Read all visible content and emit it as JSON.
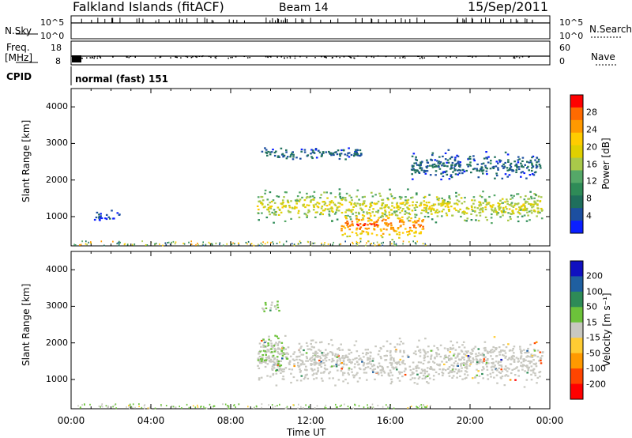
{
  "header": {
    "station": "Falkland Islands (fitACF)",
    "beam": "Beam 14",
    "date": "15/Sep/2011"
  },
  "noise_panel": {
    "label": "N.Sky",
    "right_label": "N.Search",
    "left_ticks": [
      "10^5",
      "10^0"
    ],
    "right_ticks": [
      "10^5",
      "10^0"
    ]
  },
  "freq_panel": {
    "label_line1": "Freq.",
    "label_line2": "[MHz]",
    "right_label": "Nave",
    "left_ticks": [
      "18",
      "8"
    ],
    "right_ticks": [
      "60",
      "0"
    ]
  },
  "cpid_panel": {
    "label": "CPID",
    "text": "normal (fast) 151"
  },
  "power_colorbar": {
    "label": "Power [dB]",
    "ticks": [
      "28",
      "24",
      "20",
      "16",
      "12",
      "8",
      "4"
    ],
    "colors": [
      "#ff0000",
      "#ff6a00",
      "#ff9900",
      "#ffcc00",
      "#e0d000",
      "#a9c94a",
      "#55a868",
      "#2e8b57",
      "#1f6f5c",
      "#1c4fa0",
      "#0a1fff"
    ]
  },
  "velocity_colorbar": {
    "label": "Velocity [m s⁻¹]",
    "ticks": [
      "200",
      "100",
      "50",
      "15",
      "-15",
      "-50",
      "-100",
      "-200"
    ],
    "colors": [
      "#1010c0",
      "#1f5fa0",
      "#2e8b57",
      "#6cc23a",
      "#c8c8c0",
      "#ffcc33",
      "#ff9900",
      "#ff4500",
      "#ff0000"
    ]
  },
  "chart_data": [
    {
      "type": "heatmap",
      "title": "Power",
      "xlabel": "Time UT",
      "ylabel": "Slant Range [km]",
      "x_ticks": [
        "00:00",
        "04:00",
        "08:00",
        "12:00",
        "16:00",
        "20:00",
        "00:00"
      ],
      "y_ticks": [
        1000,
        2000,
        3000,
        4000
      ],
      "xlim": [
        0,
        24
      ],
      "ylim": [
        200,
        4500
      ],
      "colorbar_label": "Power [dB]",
      "colorbar_range": [
        0,
        30
      ],
      "regions": [
        {
          "hour_start": 9.3,
          "hour_end": 23.6,
          "range_center_km": 1300,
          "range_width_km": 900,
          "power_db": 18
        },
        {
          "hour_start": 13.5,
          "hour_end": 17.7,
          "range_center_km": 800,
          "range_width_km": 800,
          "power_db": 26
        },
        {
          "hour_start": 9.5,
          "hour_end": 14.5,
          "range_center_km": 2750,
          "range_width_km": 400,
          "power_db": 6
        },
        {
          "hour_start": 17.0,
          "hour_end": 23.5,
          "range_center_km": 2400,
          "range_width_km": 800,
          "power_db": 6
        },
        {
          "hour_start": 1.0,
          "hour_end": 2.5,
          "range_center_km": 1050,
          "range_width_km": 300,
          "power_db": 5
        }
      ]
    },
    {
      "type": "heatmap",
      "title": "Velocity",
      "xlabel": "Time UT",
      "ylabel": "Slant Range [km]",
      "x_ticks": [
        "00:00",
        "04:00",
        "08:00",
        "12:00",
        "16:00",
        "20:00",
        "00:00"
      ],
      "y_ticks": [
        1000,
        2000,
        3000,
        4000
      ],
      "xlim": [
        0,
        24
      ],
      "ylim": [
        200,
        4500
      ],
      "colorbar_label": "Velocity [m s⁻¹]",
      "colorbar_range": [
        -250,
        250
      ],
      "regions": [
        {
          "hour_start": 9.3,
          "hour_end": 23.6,
          "range_center_km": 1500,
          "range_width_km": 1300,
          "velocity_ms": 0
        },
        {
          "hour_start": 9.3,
          "hour_end": 10.8,
          "range_center_km": 1800,
          "range_width_km": 1000,
          "velocity_ms": 30
        },
        {
          "hour_start": 9.5,
          "hour_end": 10.5,
          "range_center_km": 3000,
          "range_width_km": 300,
          "velocity_ms": 30
        }
      ]
    }
  ]
}
